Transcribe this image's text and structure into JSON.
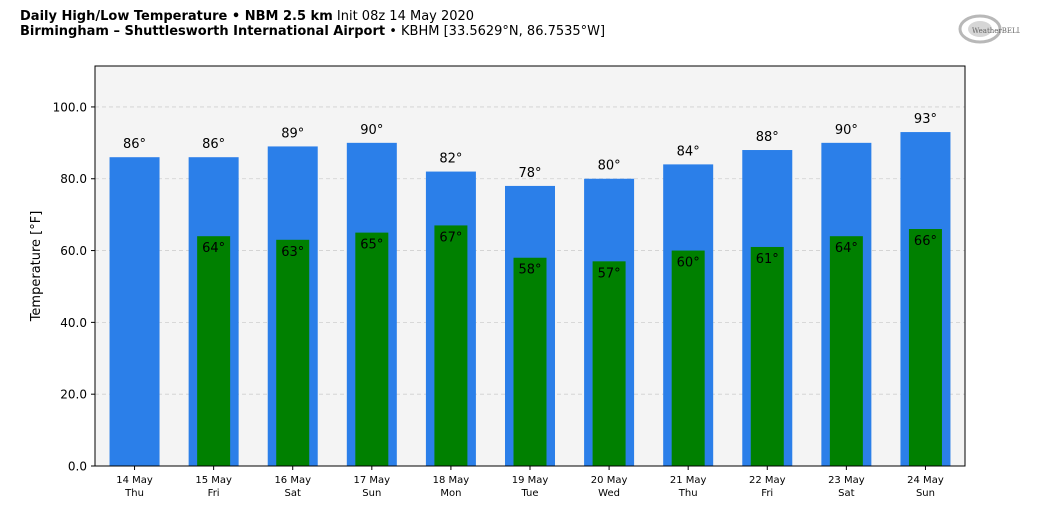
{
  "header": {
    "title_bold": "Daily High/Low Temperature • NBM 2.5 km",
    "title_init": "Init 08z 14 May 2020",
    "station_bold": "Birmingham – Shuttlesworth International Airport",
    "station_info": "• KBHM [33.5629°N, 86.7535°W]",
    "logo_text": "WeatherBELL"
  },
  "colors": {
    "high": "#2b7fe9",
    "low": "#008000",
    "plot_bg": "#f4f4f4"
  },
  "chart_data": {
    "type": "bar",
    "ylabel": "Temperature [°F]",
    "ylim": [
      0,
      111.4
    ],
    "yticks": [
      "0.0",
      "20.0",
      "40.0",
      "60.0",
      "80.0",
      "100.0"
    ],
    "ytick_values": [
      0,
      20,
      40,
      60,
      80,
      100
    ],
    "grid": true,
    "categories": [
      "14 May",
      "15 May",
      "16 May",
      "17 May",
      "18 May",
      "19 May",
      "20 May",
      "21 May",
      "22 May",
      "23 May",
      "24 May"
    ],
    "weekdays": [
      "Thu",
      "Fri",
      "Sat",
      "Sun",
      "Mon",
      "Tue",
      "Wed",
      "Thu",
      "Fri",
      "Sat",
      "Sun"
    ],
    "series": [
      {
        "key": "high",
        "values": [
          86,
          86,
          89,
          90,
          82,
          78,
          80,
          84,
          88,
          90,
          93
        ],
        "labels": [
          "86°",
          "86°",
          "89°",
          "90°",
          "82°",
          "78°",
          "80°",
          "84°",
          "88°",
          "90°",
          "93°"
        ]
      },
      {
        "key": "low",
        "values": [
          null,
          64,
          63,
          65,
          67,
          58,
          57,
          60,
          61,
          64,
          66
        ],
        "labels": [
          "",
          "64°",
          "63°",
          "65°",
          "67°",
          "58°",
          "57°",
          "60°",
          "61°",
          "64°",
          "66°"
        ]
      }
    ]
  }
}
